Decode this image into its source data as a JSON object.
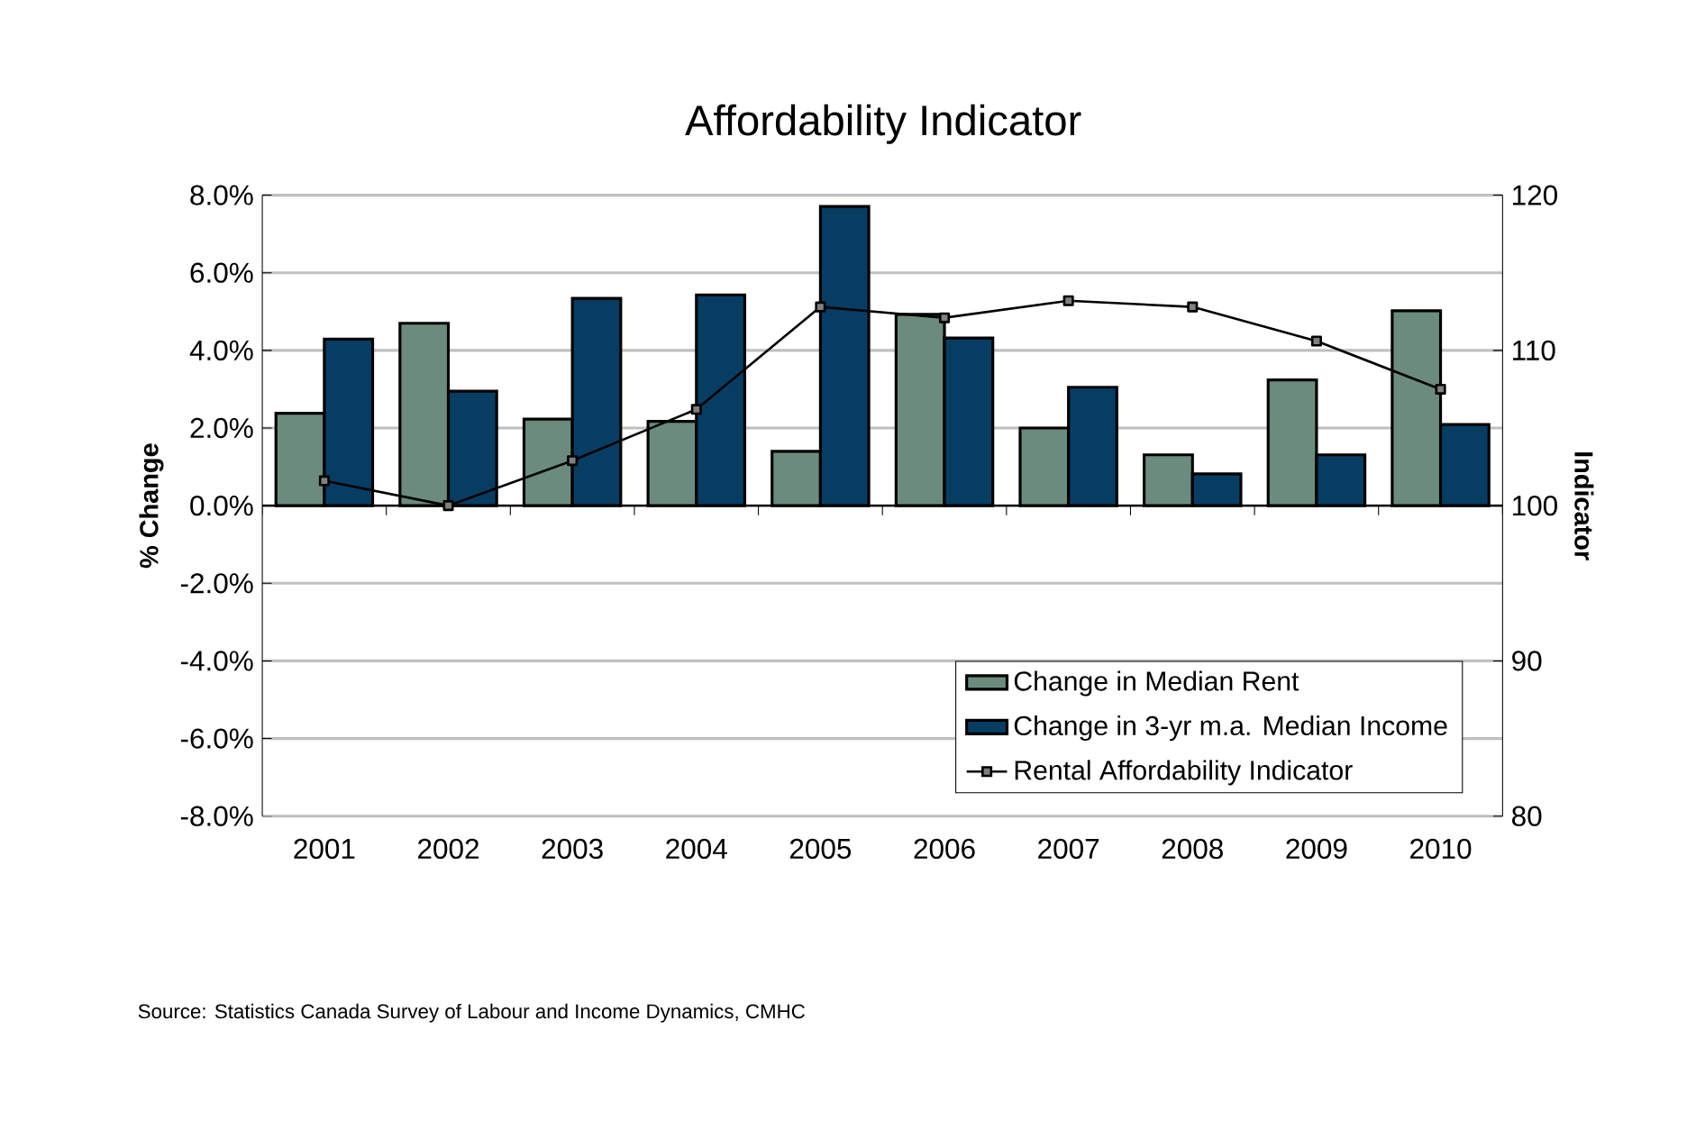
{
  "chart_data": {
    "type": "bar",
    "title": "Affordability Indicator",
    "categories": [
      "2001",
      "2002",
      "2003",
      "2004",
      "2005",
      "2006",
      "2007",
      "2008",
      "2009",
      "2010"
    ],
    "series": [
      {
        "name": "Change in Median Rent",
        "color": "#6b8c7d",
        "values": [
          2.38,
          4.7,
          2.23,
          2.17,
          1.4,
          4.93,
          2.0,
          1.31,
          3.24,
          5.02
        ]
      },
      {
        "name": "Change in 3-yr m.a. Median Income",
        "color": "#073d63",
        "values": [
          4.29,
          2.95,
          5.34,
          5.43,
          7.71,
          4.32,
          3.05,
          0.82,
          1.31,
          2.09
        ]
      },
      {
        "name": "Rental Affordability Indicator",
        "type": "line",
        "axis": "y2",
        "color": "#000000",
        "marker": "square",
        "values": [
          101.6,
          100.0,
          102.9,
          106.2,
          112.8,
          112.1,
          113.2,
          112.8,
          110.6,
          107.5
        ]
      }
    ],
    "ylabel": "% Change",
    "y2label": "Indicator",
    "ylim": [
      -8,
      8
    ],
    "yticks": [
      {
        "value": -8,
        "label": "-8.0%"
      },
      {
        "value": -6,
        "label": "-6.0%"
      },
      {
        "value": -4,
        "label": "-4.0%"
      },
      {
        "value": -2,
        "label": "-2.0%"
      },
      {
        "value": 0,
        "label": "0.0%"
      },
      {
        "value": 2,
        "label": "2.0%"
      },
      {
        "value": 4,
        "label": "4.0%"
      },
      {
        "value": 6,
        "label": "6.0%"
      },
      {
        "value": 8,
        "label": "8.0%"
      }
    ],
    "y2lim": [
      80,
      120
    ],
    "y2ticks": [
      80,
      90,
      100,
      110,
      120
    ],
    "grid": "y",
    "legend": "bottom right",
    "annotations": [
      "Source: Statistics Canada Survey of Labour and Income Dynamics, CMHC"
    ]
  }
}
